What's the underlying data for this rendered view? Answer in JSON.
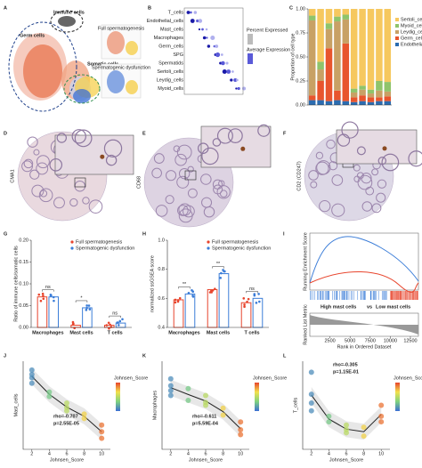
{
  "panel_letters": [
    "A",
    "B",
    "C",
    "D",
    "E",
    "F",
    "G",
    "H",
    "I",
    "J",
    "K",
    "L"
  ],
  "umap": {
    "labels": [
      "Immune cells",
      "Germ cells",
      "Somatic cells"
    ],
    "insets": [
      "Full spermatogenesis",
      "Spermatogenic dysfunction"
    ]
  },
  "dotplot": {
    "rows": [
      "T_cells",
      "Endothelial_cells",
      "Mast_cells",
      "Macrophages",
      "Germ_cells",
      "SPG",
      "Spermatids",
      "Sertoli_cells",
      "Leydig_cells",
      "Myoid_cells"
    ],
    "legend": [
      "Percent Expressed",
      "Average Expression"
    ]
  },
  "ihc": [
    {
      "marker": "CMA1"
    },
    {
      "marker": "CD68"
    },
    {
      "marker": "CD2 (CD247)"
    }
  ],
  "gsea": {
    "y_label_top": "Running Enrichment Score",
    "y_label_bottom": "Ranked List Metric",
    "x_label": "Rank in Ordered Dataset",
    "label_high": "High mast cells",
    "label_vs": "vs",
    "label_low": "Low mast cells",
    "xlim": [
      0,
      13500
    ],
    "xticks": [
      2500,
      5000,
      7500,
      10000,
      12500
    ]
  },
  "chart_data": [
    {
      "type": "stacked_bar",
      "y_label": "Proportion of cell type",
      "categories": [
        null,
        null,
        null,
        null,
        null,
        null,
        null,
        null,
        null,
        null
      ],
      "ylim": [
        0,
        1
      ],
      "yticks": [
        {
          "value": 0,
          "label": "0.00"
        },
        0.25,
        {
          "value": 0.5,
          "label": "0.50"
        },
        0.75,
        {
          "value": 1,
          "label": "1.00"
        }
      ],
      "series": [
        {
          "name": "Endothelial_cells",
          "color": "#2b6cb0",
          "values": [
            0.05,
            0.05,
            0.04,
            0.05,
            0.04,
            0.03,
            0.04,
            0.03,
            0.04,
            0.04
          ]
        },
        {
          "name": "Germ_cells",
          "color": "#e8552d",
          "values": [
            0.05,
            0.2,
            0.55,
            0.1,
            0.6,
            0.05,
            0.06,
            0.05,
            0.04,
            0.05
          ]
        },
        {
          "name": "Leydig_cells",
          "color": "#c8a165",
          "values": [
            0.78,
            0.12,
            0.2,
            0.72,
            0.25,
            0.05,
            0.06,
            0.04,
            0.07,
            0.05
          ]
        },
        {
          "name": "Myoid_cells",
          "color": "#8fc46b",
          "values": [
            0.05,
            0.08,
            0.06,
            0.05,
            0.05,
            0.04,
            0.04,
            0.04,
            0.1,
            0.1
          ]
        },
        {
          "name": "Sertoli_cells",
          "color": "#f6c85f",
          "values": [
            0.07,
            0.55,
            0.15,
            0.08,
            0.06,
            0.83,
            0.8,
            0.84,
            0.75,
            0.76
          ]
        }
      ]
    },
    {
      "type": "grouped_bar",
      "y_label": "Ratio of immune cells/somatic cells",
      "categories": [
        "Macrophages",
        "Mast cells",
        "T cells"
      ],
      "series": [
        {
          "name": "Full spermatogenesis",
          "color": "#e8452d",
          "values": [
            0.07,
            0.005,
            0.005
          ]
        },
        {
          "name": "Spermatogenic dysfunction",
          "color": "#3b7dd8",
          "values": [
            0.07,
            0.045,
            0.01
          ]
        }
      ],
      "significance": [
        "ns",
        "*",
        "ns"
      ],
      "ylim": [
        0,
        0.2
      ],
      "yticks": [
        {
          "value": 0,
          "label": "0.00"
        },
        0.05,
        {
          "value": 0.1,
          "label": "0.10"
        },
        0.15,
        {
          "value": 0.2,
          "label": "0.20"
        }
      ]
    },
    {
      "type": "grouped_bar",
      "y_label": "normalized ssGSEA score",
      "categories": [
        "Macrophages",
        "Mast cells",
        "T cells"
      ],
      "series": [
        {
          "name": "Full spermatogenesis",
          "color": "#e8452d",
          "values": [
            0.59,
            0.66,
            0.57
          ]
        },
        {
          "name": "Spermatogenic dysfunction",
          "color": "#3b7dd8",
          "values": [
            0.63,
            0.77,
            0.6
          ]
        }
      ],
      "significance": [
        "**",
        "**",
        "ns"
      ],
      "ylim": [
        0.4,
        1.0
      ],
      "yticks": [
        0.4,
        0.6,
        0.8,
        {
          "value": 1,
          "label": "1.0"
        }
      ]
    },
    {
      "type": "scatter",
      "x_label": "Johnsen_Score",
      "y_label": "Mast_cells",
      "x": [
        2,
        2,
        2,
        2,
        4,
        4,
        6,
        6,
        6,
        8,
        8,
        10,
        10,
        10
      ],
      "values": [
        0.92,
        0.88,
        0.85,
        0.8,
        0.72,
        0.68,
        0.62,
        0.58,
        0.55,
        0.52,
        0.48,
        0.42,
        0.36,
        0.3
      ],
      "xlim": [
        1,
        11
      ],
      "xticks": [
        2,
        4,
        6,
        8,
        10
      ],
      "ylim": [
        0.2,
        1.0
      ],
      "colorbar_title": "Johnsen_Score",
      "colormap": [
        "#3b6fd4",
        "#7fd37f",
        "#f2e14c",
        "#e8452d"
      ],
      "annotations": [
        "rho=-0.707",
        "p=2.55E-05"
      ]
    },
    {
      "type": "scatter",
      "x_label": "Johnsen_Score",
      "y_label": "Macrophages",
      "x": [
        2,
        2,
        2,
        2,
        4,
        4,
        6,
        6,
        6,
        8,
        8,
        10,
        10,
        10
      ],
      "values": [
        0.82,
        0.75,
        0.7,
        0.65,
        0.72,
        0.6,
        0.65,
        0.58,
        0.55,
        0.52,
        0.45,
        0.3,
        0.38,
        0.25
      ],
      "xlim": [
        1,
        11
      ],
      "xticks": [
        2,
        4,
        6,
        8,
        10
      ],
      "ylim": [
        0.1,
        1.0
      ],
      "colorbar_title": "Johnsen_Score",
      "colormap": [
        "#3b6fd4",
        "#7fd37f",
        "#f2e14c",
        "#e8452d"
      ],
      "annotations": [
        "rho=-0.611",
        "p=5.59E-04"
      ]
    },
    {
      "type": "scatter",
      "x_label": "Johnsen_Score",
      "y_label": "T_cells",
      "x": [
        2,
        2,
        2,
        2,
        4,
        4,
        6,
        6,
        6,
        8,
        8,
        10,
        10,
        10
      ],
      "values": [
        0.9,
        0.7,
        0.62,
        0.55,
        0.5,
        0.45,
        0.42,
        0.38,
        0.35,
        0.4,
        0.32,
        0.5,
        0.6,
        0.45
      ],
      "xlim": [
        1,
        11
      ],
      "xticks": [
        2,
        4,
        6,
        8,
        10
      ],
      "ylim": [
        0.2,
        1.0
      ],
      "colorbar_title": "Johnsen_Score",
      "colormap": [
        "#3b6fd4",
        "#7fd37f",
        "#f2e14c",
        "#e8452d"
      ],
      "annotations": [
        "rho=-0.305",
        "p=1.15E-01"
      ]
    }
  ]
}
